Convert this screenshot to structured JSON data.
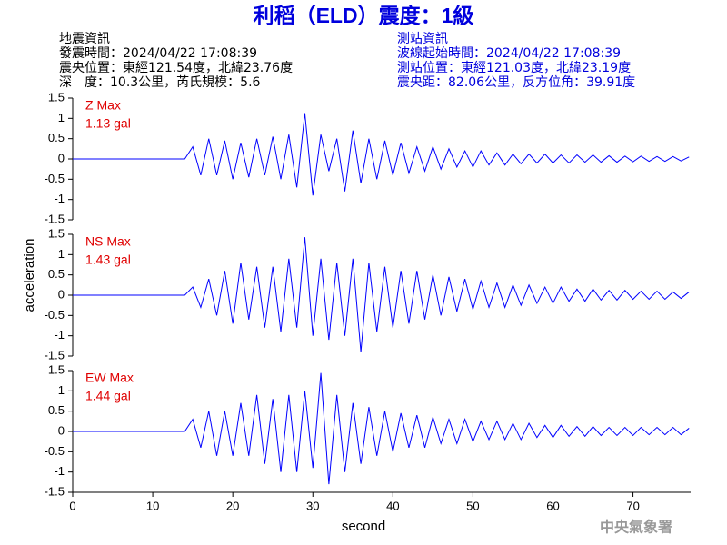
{
  "title": "利稻（ELD）震度：1級",
  "header": {
    "left": [
      "地震資訊",
      "發震時間：2024/04/22 17:08:39",
      "震央位置：東經121.54度，北緯23.76度",
      "深　度：10.3公里，芮氏規模：5.6"
    ],
    "right": [
      "測站資訊",
      "波線起始時間：2024/04/22 17:08:39",
      "測站位置：東經121.03度，北緯23.19度",
      "震央距：82.06公里，反方位角：39.91度"
    ]
  },
  "footer": "中央氣象署",
  "chart_data": [
    {
      "type": "line",
      "annotations": [
        "Z Max",
        "1.13 gal"
      ],
      "x": [
        0,
        14,
        15,
        16,
        17,
        18,
        19,
        20,
        21,
        22,
        23,
        24,
        25,
        26,
        27,
        28,
        29,
        30,
        31,
        32,
        33,
        34,
        35,
        36,
        37,
        38,
        39,
        40,
        41,
        42,
        43,
        44,
        45,
        46,
        47,
        48,
        49,
        50,
        51,
        52,
        53,
        54,
        55,
        56,
        57,
        58,
        59,
        60,
        61,
        62,
        63,
        64,
        65,
        66,
        67,
        68,
        69,
        70,
        71,
        72,
        73,
        74,
        75,
        76,
        77
      ],
      "series": [
        {
          "color": "#0000ff",
          "values": [
            0,
            0,
            0.3,
            -0.4,
            0.5,
            -0.4,
            0.45,
            -0.5,
            0.4,
            -0.45,
            0.5,
            -0.4,
            0.55,
            -0.5,
            0.6,
            -0.7,
            1.13,
            -0.9,
            0.6,
            -0.3,
            0.5,
            -0.8,
            0.7,
            -0.6,
            0.5,
            -0.5,
            0.45,
            -0.4,
            0.4,
            -0.35,
            0.3,
            -0.3,
            0.3,
            -0.25,
            0.25,
            -0.2,
            0.2,
            -0.2,
            0.2,
            -0.15,
            0.15,
            -0.15,
            0.12,
            -0.12,
            0.12,
            -0.1,
            0.12,
            -0.1,
            0.1,
            -0.1,
            0.1,
            -0.08,
            0.1,
            -0.08,
            0.08,
            -0.08,
            0.07,
            -0.07,
            0.07,
            -0.06,
            0.06,
            -0.06,
            0.06,
            -0.05,
            0.05
          ]
        }
      ],
      "xlim": [
        0,
        77.2
      ],
      "ylim": [
        -1.5,
        1.5
      ],
      "yticks": [
        -1.5,
        -1,
        -0.5,
        0,
        0.5,
        1,
        1.5
      ]
    },
    {
      "type": "line",
      "annotations": [
        "NS Max",
        "1.43 gal"
      ],
      "y_label": "acceleration",
      "x": [
        0,
        14,
        15,
        16,
        17,
        18,
        19,
        20,
        21,
        22,
        23,
        24,
        25,
        26,
        27,
        28,
        29,
        30,
        31,
        32,
        33,
        34,
        35,
        36,
        37,
        38,
        39,
        40,
        41,
        42,
        43,
        44,
        45,
        46,
        47,
        48,
        49,
        50,
        51,
        52,
        53,
        54,
        55,
        56,
        57,
        58,
        59,
        60,
        61,
        62,
        63,
        64,
        65,
        66,
        67,
        68,
        69,
        70,
        71,
        72,
        73,
        74,
        75,
        76,
        77
      ],
      "series": [
        {
          "color": "#0000ff",
          "values": [
            0,
            0,
            0.2,
            -0.3,
            0.4,
            -0.5,
            0.6,
            -0.7,
            0.8,
            -0.6,
            0.7,
            -0.8,
            0.7,
            -0.9,
            0.9,
            -0.8,
            1.43,
            -1.0,
            0.9,
            -1.1,
            0.8,
            -1.0,
            0.9,
            -1.4,
            0.8,
            -0.9,
            0.7,
            -0.8,
            0.6,
            -0.7,
            0.6,
            -0.6,
            0.5,
            -0.5,
            0.45,
            -0.4,
            0.4,
            -0.35,
            0.35,
            -0.3,
            0.3,
            -0.3,
            0.25,
            -0.25,
            0.25,
            -0.2,
            0.2,
            -0.2,
            0.2,
            -0.15,
            0.15,
            -0.15,
            0.15,
            -0.12,
            0.12,
            -0.12,
            0.12,
            -0.1,
            0.1,
            -0.1,
            0.1,
            -0.1,
            0.08,
            -0.08,
            0.08
          ]
        }
      ],
      "xlim": [
        0,
        77.2
      ],
      "ylim": [
        -1.5,
        1.5
      ],
      "yticks": [
        -1.5,
        -1,
        -0.5,
        0,
        0.5,
        1,
        1.5
      ]
    },
    {
      "type": "line",
      "annotations": [
        "EW Max",
        "1.44 gal"
      ],
      "x_label": "second",
      "x": [
        0,
        14,
        15,
        16,
        17,
        18,
        19,
        20,
        21,
        22,
        23,
        24,
        25,
        26,
        27,
        28,
        29,
        30,
        31,
        32,
        33,
        34,
        35,
        36,
        37,
        38,
        39,
        40,
        41,
        42,
        43,
        44,
        45,
        46,
        47,
        48,
        49,
        50,
        51,
        52,
        53,
        54,
        55,
        56,
        57,
        58,
        59,
        60,
        61,
        62,
        63,
        64,
        65,
        66,
        67,
        68,
        69,
        70,
        71,
        72,
        73,
        74,
        75,
        76,
        77
      ],
      "series": [
        {
          "color": "#0000ff",
          "values": [
            0,
            0,
            0.3,
            -0.4,
            0.5,
            -0.6,
            0.5,
            -0.6,
            0.7,
            -0.6,
            0.9,
            -0.8,
            0.8,
            -1.0,
            0.9,
            -1.0,
            1.0,
            -0.9,
            1.44,
            -1.3,
            0.9,
            -1.0,
            0.7,
            -0.8,
            0.6,
            -0.6,
            0.5,
            -0.5,
            0.45,
            -0.4,
            0.4,
            -0.4,
            0.35,
            -0.3,
            0.3,
            -0.3,
            0.3,
            -0.25,
            0.25,
            -0.2,
            0.25,
            -0.2,
            0.2,
            -0.2,
            0.2,
            -0.15,
            0.15,
            -0.15,
            0.15,
            -0.12,
            0.12,
            -0.12,
            0.12,
            -0.1,
            0.1,
            -0.1,
            0.1,
            -0.1,
            0.1,
            -0.08,
            0.1,
            -0.08,
            0.1,
            -0.08,
            0.08
          ]
        }
      ],
      "xlim": [
        0,
        77.2
      ],
      "ylim": [
        -1.5,
        1.5
      ],
      "yticks": [
        -1.5,
        -1,
        -0.5,
        0,
        0.5,
        1,
        1.5
      ],
      "xticks": [
        0,
        10,
        20,
        30,
        40,
        50,
        60,
        70
      ]
    }
  ]
}
